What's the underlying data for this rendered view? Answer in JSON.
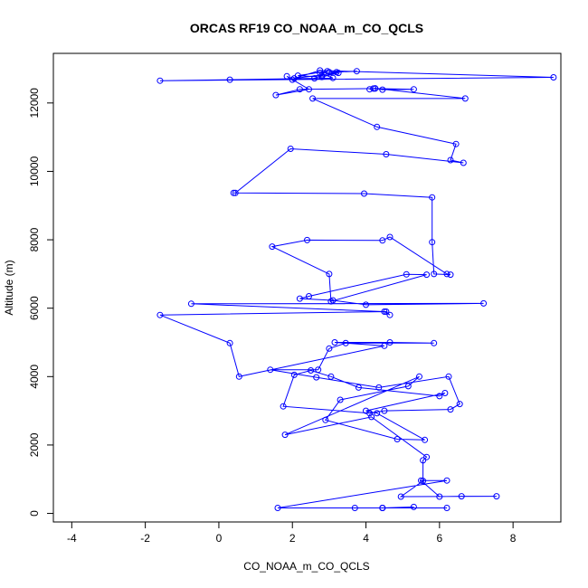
{
  "chart_data": {
    "type": "line",
    "title": "ORCAS RF19 CO_NOAA_m_CO_QCLS",
    "xlabel": "CO_NOAA_m_CO_QCLS",
    "ylabel": "Altitude (m)",
    "xlim": [
      -4.5,
      9.3
    ],
    "ylim": [
      -250,
      13450
    ],
    "xticks": [
      -4,
      -2,
      0,
      2,
      4,
      6,
      8
    ],
    "yticks": [
      0,
      2000,
      4000,
      6000,
      8000,
      10000,
      12000
    ],
    "grid": false,
    "legend": "none",
    "series_color": "#0000ff",
    "marker": "open-circle",
    "series": [
      {
        "x": [
          2.95,
          2.15,
          2.8,
          3.25,
          2.05,
          2.75,
          9.1,
          -1.6,
          0.3,
          2.6,
          2.8,
          3.2,
          3.0,
          3.75,
          2.75,
          3.1,
          2.0,
          1.85,
          2.45,
          1.55,
          2.2,
          4.25,
          4.45,
          5.3,
          4.2,
          4.1,
          4.25,
          6.7,
          2.55,
          4.3,
          6.45,
          6.3,
          6.65,
          4.55,
          1.95,
          0.45,
          0.4,
          3.95,
          5.8,
          5.8,
          5.85,
          6.3,
          6.2,
          4.65,
          4.45,
          2.4,
          1.45,
          3.0,
          3.05,
          5.65,
          5.1,
          2.45,
          2.2,
          3.1,
          4.0,
          7.2,
          -0.75,
          4.5,
          4.65,
          4.55,
          -1.6,
          0.3,
          0.55,
          4.5,
          3.15,
          4.65,
          5.85,
          3.45,
          3.0,
          2.7,
          1.4,
          2.65,
          4.35,
          6.25,
          6.55,
          6.3,
          4.5,
          4.1,
          1.75,
          2.05,
          2.5,
          3.05,
          3.8,
          6.0,
          6.15,
          4.0,
          4.3,
          5.6,
          4.85,
          2.9,
          3.3,
          5.15,
          5.45,
          1.8,
          4.15,
          5.65,
          5.55,
          5.55,
          4.95,
          7.55,
          6.6,
          6.0,
          5.5,
          6.2,
          1.6,
          3.7,
          4.45,
          5.3,
          4.45,
          6.2,
          4.45
        ],
        "y": [
          12930,
          12800,
          12760,
          12880,
          12720,
          12950,
          12750,
          12650,
          12680,
          12720,
          12800,
          12900,
          12900,
          12930,
          12880,
          12730,
          12680,
          12780,
          12400,
          12230,
          12400,
          12420,
          12390,
          12400,
          12420,
          12400,
          12430,
          12130,
          12130,
          11300,
          10800,
          10330,
          10250,
          10500,
          10660,
          9370,
          9370,
          9350,
          9240,
          7930,
          7000,
          6980,
          7000,
          8080,
          7980,
          7990,
          7800,
          7000,
          6200,
          6980,
          6990,
          6350,
          6280,
          6230,
          6100,
          6140,
          6130,
          5900,
          5800,
          5900,
          5800,
          4980,
          4000,
          4900,
          5000,
          5000,
          4980,
          4980,
          4820,
          4200,
          4200,
          3980,
          3680,
          4000,
          3200,
          3040,
          3000,
          2930,
          3130,
          4050,
          4180,
          4000,
          3680,
          3430,
          3520,
          3000,
          2930,
          2150,
          2170,
          2730,
          3320,
          3720,
          4000,
          2300,
          2820,
          1650,
          1550,
          950,
          490,
          500,
          500,
          490,
          960,
          960,
          160,
          160,
          160,
          190,
          160,
          160,
          160
        ]
      }
    ]
  }
}
